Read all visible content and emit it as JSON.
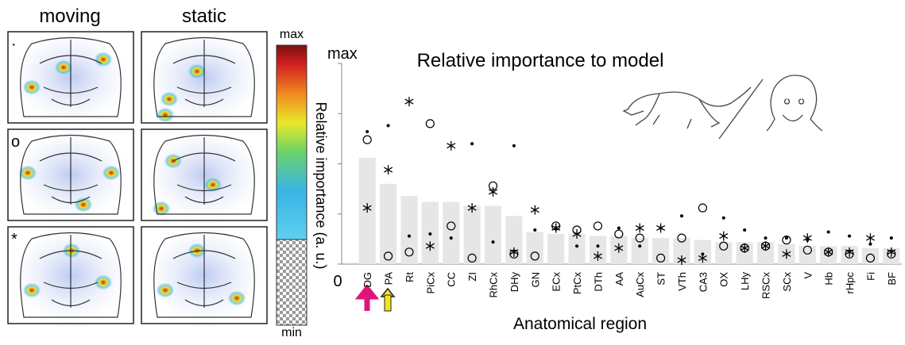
{
  "panels": {
    "columns": [
      "moving",
      "static"
    ],
    "colorbar": {
      "top": "max",
      "bottom": "min",
      "label": "Relative importance (a. u.)"
    }
  },
  "chart_data": {
    "type": "bar",
    "title": "Relative importance to model",
    "x_label": "Anatomical region",
    "categories": [
      "DG",
      "PA",
      "Rt",
      "PiCx",
      "CC",
      "ZI",
      "RhCx",
      "DHy",
      "GN",
      "ECx",
      "PtCx",
      "DTh",
      "AA",
      "AuCx",
      "ST",
      "VTh",
      "CA3",
      "OX",
      "LHy",
      "RSCx",
      "SCx",
      "V",
      "Hb",
      "rHpc",
      "Fi",
      "BF"
    ],
    "values": [
      0.53,
      0.4,
      0.34,
      0.31,
      0.31,
      0.29,
      0.29,
      0.24,
      0.16,
      0.15,
      0.15,
      0.14,
      0.14,
      0.13,
      0.13,
      0.13,
      0.12,
      0.11,
      0.11,
      0.11,
      0.1,
      0.09,
      0.09,
      0.09,
      0.08,
      0.08
    ],
    "color": "#e6e6e6",
    "series": [
      {
        "name": "·",
        "marker": "dot",
        "color": "#000000",
        "values": [
          0.66,
          0.69,
          0.14,
          0.15,
          0.13,
          0.6,
          0.11,
          0.59,
          0.17,
          0.18,
          0.09,
          0.09,
          0.18,
          0.09,
          0.18,
          0.24,
          0.05,
          0.23,
          0.17,
          0.13,
          0.13,
          0.12,
          0.16,
          0.14,
          0.1,
          0.13
        ]
      },
      {
        "name": "o",
        "marker": "circle",
        "color": "#000000",
        "values": [
          0.62,
          0.04,
          0.06,
          0.7,
          0.19,
          0.03,
          0.39,
          0.05,
          0.04,
          0.19,
          0.17,
          0.19,
          0.15,
          0.13,
          0.03,
          0.13,
          0.28,
          0.09,
          0.08,
          0.09,
          0.12,
          0.07,
          0.06,
          0.05,
          0.03,
          0.05
        ]
      },
      {
        "name": "*",
        "marker": "star",
        "color": "#000000",
        "values": [
          0.28,
          0.47,
          0.81,
          0.09,
          0.59,
          0.28,
          0.36,
          0.06,
          0.27,
          0.18,
          0.15,
          0.04,
          0.08,
          0.18,
          0.18,
          0.02,
          0.03,
          0.14,
          0.08,
          0.09,
          0.05,
          0.13,
          0.06,
          0.06,
          0.13,
          0.06
        ]
      }
    ],
    "ylim": [
      0,
      1
    ],
    "yticks": [
      0,
      {
        "value": 1,
        "label": "max"
      }
    ],
    "minor_yticks": [
      0.25,
      0.5,
      0.75
    ],
    "grid": false
  }
}
